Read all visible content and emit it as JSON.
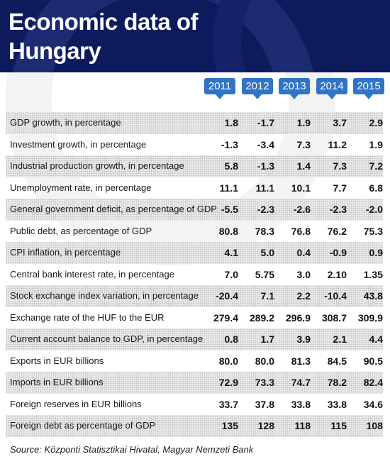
{
  "header": {
    "title_line1": "Economic data of",
    "title_line2": "Hungary"
  },
  "years": [
    "2011",
    "2012",
    "2013",
    "2014",
    "2015"
  ],
  "rows": [
    {
      "label": "GDP growth, in percentage",
      "values": [
        "1.8",
        "-1.7",
        "1.9",
        "3.7",
        "2.9"
      ]
    },
    {
      "label": "Investment growth, in percentage",
      "values": [
        "-1.3",
        "-3.4",
        "7.3",
        "11.2",
        "1.9"
      ]
    },
    {
      "label": "Industrial production growth, in percentage",
      "values": [
        "5.8",
        "-1.3",
        "1.4",
        "7.3",
        "7.2"
      ]
    },
    {
      "label": "Unemployment rate, in percentage",
      "values": [
        "11.1",
        "11.1",
        "10.1",
        "7.7",
        "6.8"
      ]
    },
    {
      "label": "General government deficit, as percentage of GDP",
      "values": [
        "-5.5",
        "-2.3",
        "-2.6",
        "-2.3",
        "-2.0"
      ]
    },
    {
      "label": "Public debt, as percentage of GDP",
      "values": [
        "80.8",
        "78.3",
        "76.8",
        "76.2",
        "75.3"
      ]
    },
    {
      "label": "CPI inflation, in percentage",
      "values": [
        "4.1",
        "5.0",
        "0.4",
        "-0.9",
        "0.9"
      ]
    },
    {
      "label": "Central bank interest rate, in percentage",
      "values": [
        "7.0",
        "5.75",
        "3.0",
        "2.10",
        "1.35"
      ]
    },
    {
      "label": "Stock exchange index variation, in percentage",
      "values": [
        "-20.4",
        "7.1",
        "2.2",
        "-10.4",
        "43.8"
      ]
    },
    {
      "label": "Exchange rate of the HUF to the EUR",
      "values": [
        "279.4",
        "289.2",
        "296.9",
        "308.7",
        "309.9"
      ]
    },
    {
      "label": "Current account balance to GDP, in percentage",
      "values": [
        "0.8",
        "1.7",
        "3.9",
        "2.1",
        "4.4"
      ]
    },
    {
      "label": "Exports in EUR billions",
      "values": [
        "80.0",
        "80.0",
        "81.3",
        "84.5",
        "90.5"
      ]
    },
    {
      "label": "Imports in EUR billions",
      "values": [
        "72.9",
        "73.3",
        "74.7",
        "78.2",
        "82.4"
      ]
    },
    {
      "label": "Foreign reserves in EUR billions",
      "values": [
        "33.7",
        "37.8",
        "33.8",
        "33.8",
        "34.6"
      ]
    },
    {
      "label": "Foreign debt as percentage of GDP",
      "values": [
        "135",
        "128",
        "118",
        "115",
        "108"
      ]
    }
  ],
  "source": "Source: Központi Statisztikai Hivatal, Magyar Nemzeti Bank",
  "colors": {
    "header_bg": "#0d1a5c",
    "year_tag": "#2f74c6"
  }
}
